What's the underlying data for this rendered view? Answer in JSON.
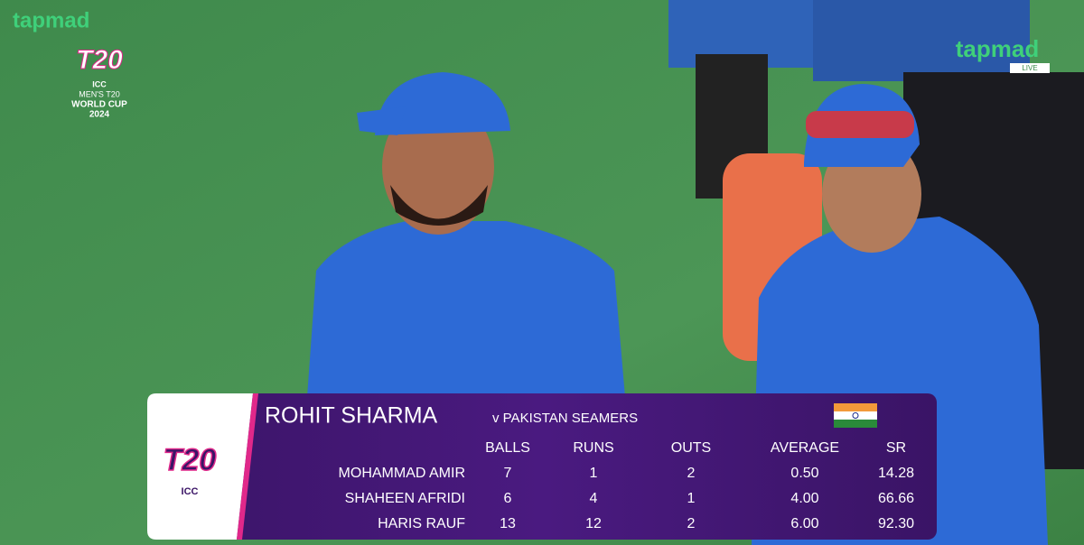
{
  "broadcaster": {
    "logo_left": "tapmad",
    "logo_right": "tapmad",
    "live": "LIVE"
  },
  "event": {
    "logo": "T20",
    "org": "ICC",
    "name": "MEN'S T20",
    "title": "WORLD CUP",
    "year": "2024"
  },
  "card": {
    "logo": "T20",
    "logo_org": "ICC",
    "player": "ROHIT SHARMA",
    "subtitle": "v PAKISTAN SEAMERS",
    "columns": [
      "BALLS",
      "RUNS",
      "OUTS",
      "AVERAGE",
      "SR"
    ],
    "rows": [
      {
        "name": "MOHAMMAD AMIR",
        "cells": [
          "7",
          "1",
          "2",
          "0.50",
          "14.28"
        ]
      },
      {
        "name": "SHAHEEN AFRIDI",
        "cells": [
          "6",
          "4",
          "1",
          "4.00",
          "66.66"
        ]
      },
      {
        "name": "HARIS RAUF",
        "cells": [
          "13",
          "12",
          "2",
          "6.00",
          "92.30"
        ]
      }
    ]
  }
}
